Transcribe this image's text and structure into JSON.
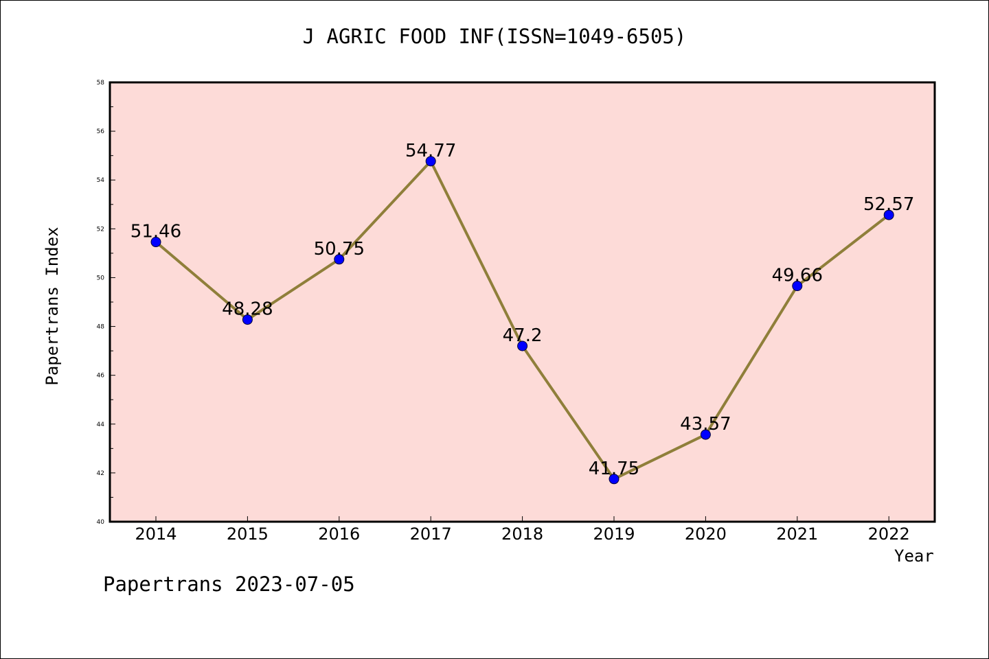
{
  "chart_data": {
    "type": "line",
    "title": "J AGRIC FOOD INF(ISSN=1049-6505)",
    "xlabel": "Year",
    "ylabel": "Papertrans Index",
    "categories": [
      "2014",
      "2015",
      "2016",
      "2017",
      "2018",
      "2019",
      "2020",
      "2021",
      "2022"
    ],
    "series": [
      {
        "values": [
          51.46,
          48.28,
          50.75,
          54.77,
          47.2,
          41.75,
          43.57,
          49.66,
          52.57
        ],
        "labels": [
          "51.46",
          "48.28",
          "50.75",
          "54.77",
          "47.2",
          "41.75",
          "43.57",
          "49.66",
          "52.57"
        ]
      }
    ],
    "ylim": [
      40,
      58
    ],
    "yticks": [
      "40",
      "42",
      "44",
      "46",
      "48",
      "50",
      "52",
      "54",
      "56",
      "58"
    ],
    "grid": false,
    "colors": {
      "plot_background": "#fddbd8",
      "line": "#8f7f3a",
      "marker": "#0000ff",
      "axis": "#000000"
    }
  },
  "footer": {
    "note": "Papertrans 2023-07-05"
  }
}
